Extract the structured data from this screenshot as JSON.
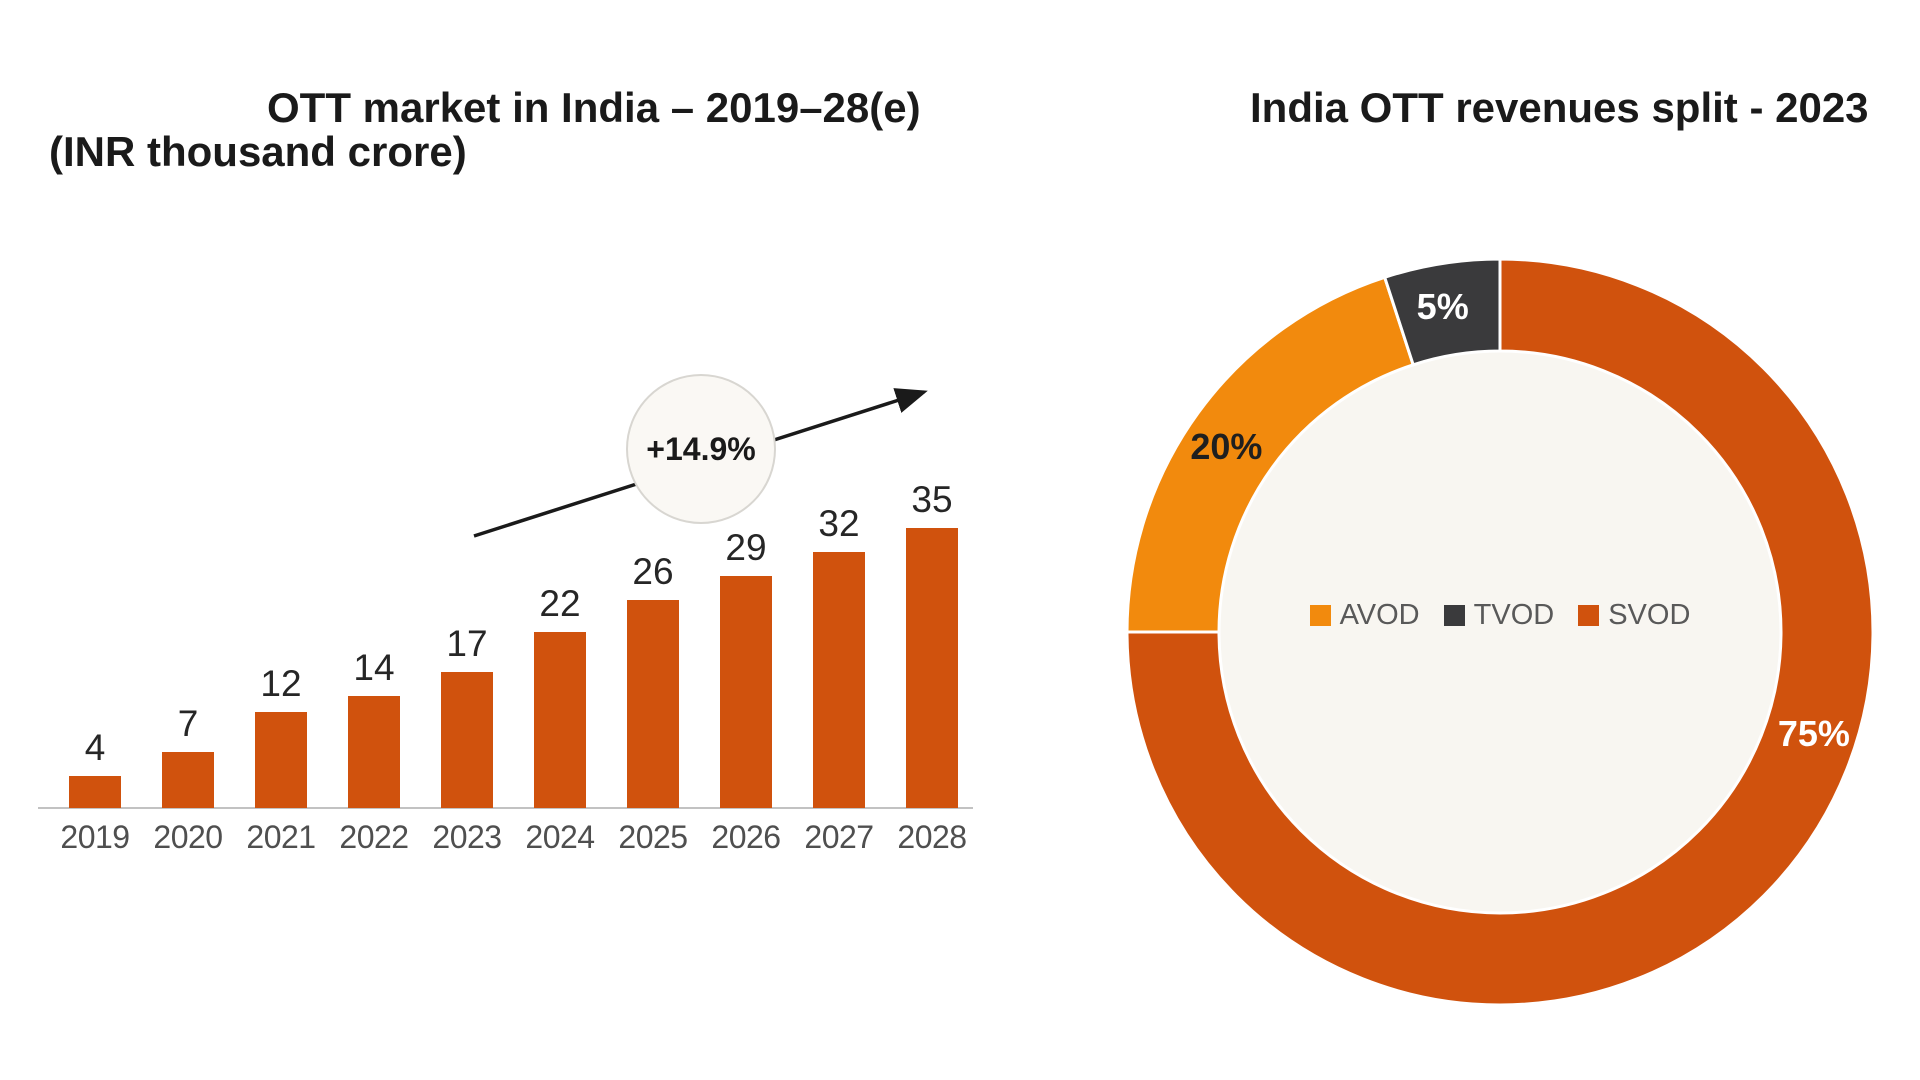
{
  "left_chart": {
    "title_line1": "OTT market in India – 2019–28(e)",
    "title_line2": "(INR thousand crore)",
    "annotation_label": "+14.9%"
  },
  "right_chart": {
    "title": "India OTT revenues split - 2023",
    "legend": [
      {
        "label": "AVOD",
        "color": "#F28A0D"
      },
      {
        "label": "TVOD",
        "color": "#3A3A3C"
      },
      {
        "label": "SVOD",
        "color": "#D0520D"
      }
    ]
  },
  "chart_data": [
    {
      "type": "bar",
      "title": "OTT market in India – 2019–28(e) (INR thousand crore)",
      "categories": [
        "2019",
        "2020",
        "2021",
        "2022",
        "2023",
        "2024",
        "2025",
        "2026",
        "2027",
        "2028"
      ],
      "values": [
        4,
        7,
        12,
        14,
        17,
        22,
        26,
        29,
        32,
        35
      ],
      "bar_color": "#D0520D",
      "value_label_color": "#262626",
      "axis_label_color": "#4F4F4F",
      "trend_annotation": "+14.9%",
      "ylabel": "INR thousand crore",
      "ylim": [
        0,
        38
      ],
      "gridlines": false,
      "legend_position": "none"
    },
    {
      "type": "pie",
      "donut": true,
      "title": "India OTT revenues split - 2023",
      "start_angle_deg": 0,
      "hole_color": "#F8F6F1",
      "slice_gap_color": "#FFFFFF",
      "slices": [
        {
          "label": "SVOD",
          "value": 75,
          "display": "75%",
          "color": "#D0520D",
          "label_color": "#FFFFFF",
          "label_angle_deg": 108
        },
        {
          "label": "AVOD",
          "value": 20,
          "display": "20%",
          "color": "#F28A0D",
          "label_color": "#1F1F1F",
          "label_angle_deg": 304
        },
        {
          "label": "TVOD",
          "value": 5,
          "display": "5%",
          "color": "#3A3A3C",
          "label_color": "#FFFFFF",
          "label_angle_deg": 350
        }
      ],
      "legend": [
        "AVOD",
        "TVOD",
        "SVOD"
      ],
      "legend_position": "center"
    }
  ]
}
